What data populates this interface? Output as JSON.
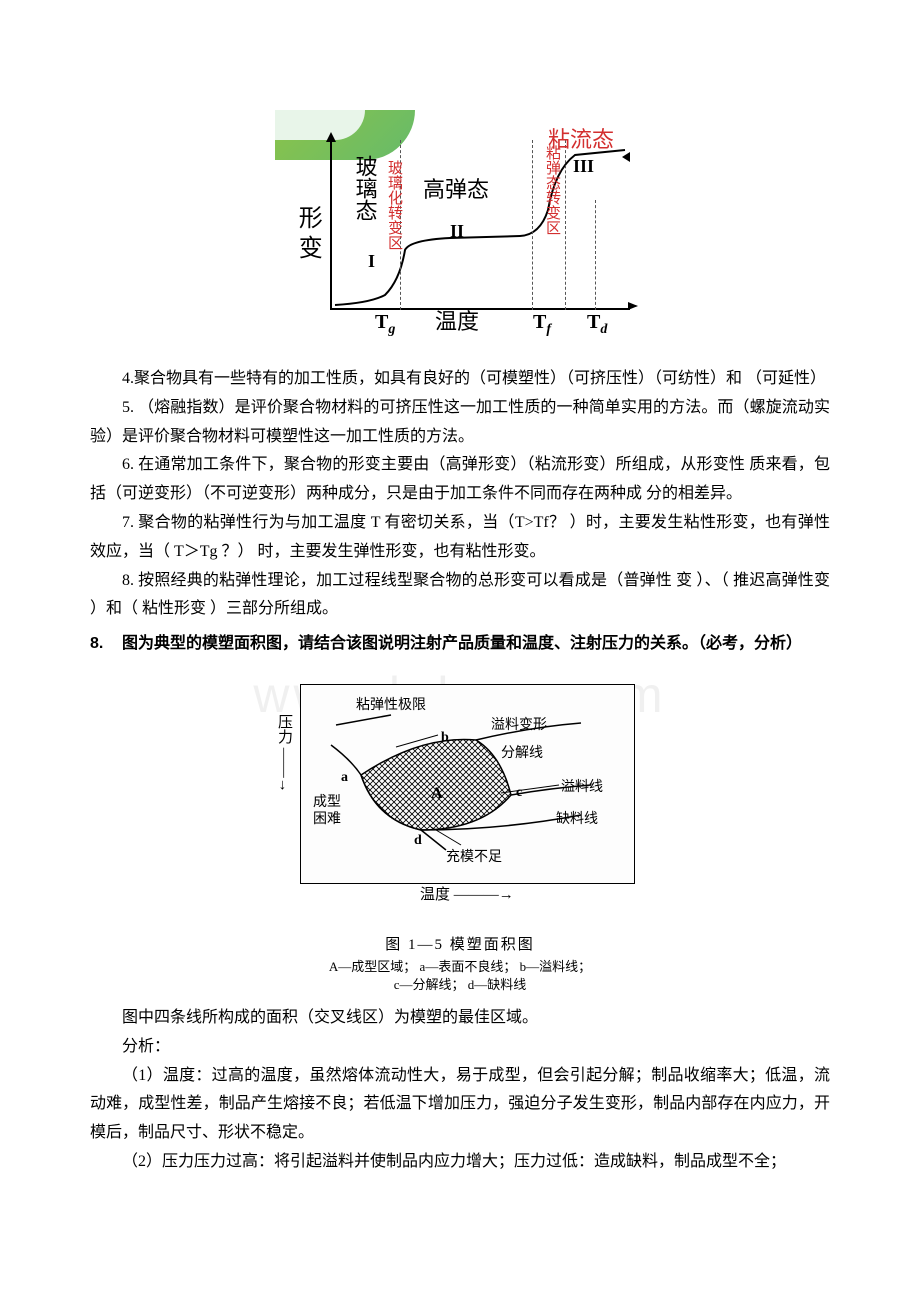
{
  "figure1": {
    "yaxis": "形变",
    "xaxis": "温度",
    "region1": "玻璃态",
    "region1_roman": "I",
    "transition1": "玻璃化转变区",
    "region2": "高弹态",
    "region2_roman": "II",
    "transition2": "粘弹态转变区",
    "region3": "粘流态",
    "region3_roman": "III",
    "tick_tg": "T",
    "tick_tg_sub": "g",
    "tick_tf": "T",
    "tick_tf_sub": "f",
    "tick_td": "T",
    "tick_td_sub": "d",
    "green_color": "#8bc34a",
    "red_color": "#d32f2f"
  },
  "paragraphs": {
    "p4": "4.聚合物具有一些特有的加工性质，如具有良好的（可模塑性）（可挤压性）（可纺性）和 （可延性）",
    "p5": "5. （熔融指数）是评价聚合物材料的可挤压性这一加工性质的一种简单实用的方法。而（螺旋流动实验）是评价聚合物材料可模塑性这一加工性质的方法。",
    "p6": "6. 在通常加工条件下，聚合物的形变主要由（高弹形变）（粘流形变）所组成，从形变性 质来看，包括（可逆变形）（不可逆变形）两种成分，只是由于加工条件不同而存在两种成 分的相差异。",
    "p7": "7. 聚合物的粘弹性行为与加工温度 T 有密切关系，当（T>Tf？ ）时，主要发生粘性形变，也有弹性效应，当（ T＞Tg ？） 时，主要发生弹性形变，也有粘性形变。",
    "p8": "8. 按照经典的粘弹性理论，加工过程线型聚合物的总形变可以看成是（普弹性 变 ）、（ 推迟高弹性变  ）和（ 粘性形变 ）三部分所组成。",
    "q8_num": "8.",
    "q8_text": "图为典型的模塑面积图，请结合该图说明注射产品质量和温度、注射压力的关系。（必考，分析）"
  },
  "figure2": {
    "yaxis": "压力",
    "xaxis": "温度",
    "label_limit": "粘弹性极限",
    "label_overflow_def": "溢料变形",
    "label_decomp": "分解线",
    "label_overflow": "溢料线",
    "label_short": "缺料线",
    "label_fill": "充模不足",
    "label_difficult1": "成型",
    "label_difficult2": "困难",
    "label_a": "a",
    "label_b": "b",
    "label_c": "c",
    "label_d": "d",
    "label_A": "A",
    "caption": "图  1—5    模塑面积图",
    "legend": "A—成型区域；  a—表面不良线；  b—溢料线；\nc—分解线；  d—缺料线"
  },
  "analysis": {
    "intro": "图中四条线所构成的面积（交叉线区）为模塑的最佳区域。",
    "label": "分析：",
    "a1": "（1）温度：过高的温度，虽然熔体流动性大，易于成型，但会引起分解；制品收缩率大；低温，流动难，成型性差，制品产生熔接不良；若低温下增加压力，强迫分子发生变形，制品内部存在内应力，开模后，制品尺寸、形状不稳定。",
    "a2": "（2）压力压力过高：将引起溢料并使制品内应力增大；压力过低：造成缺料，制品成型不全；"
  },
  "watermark": "www.bdocx.com"
}
